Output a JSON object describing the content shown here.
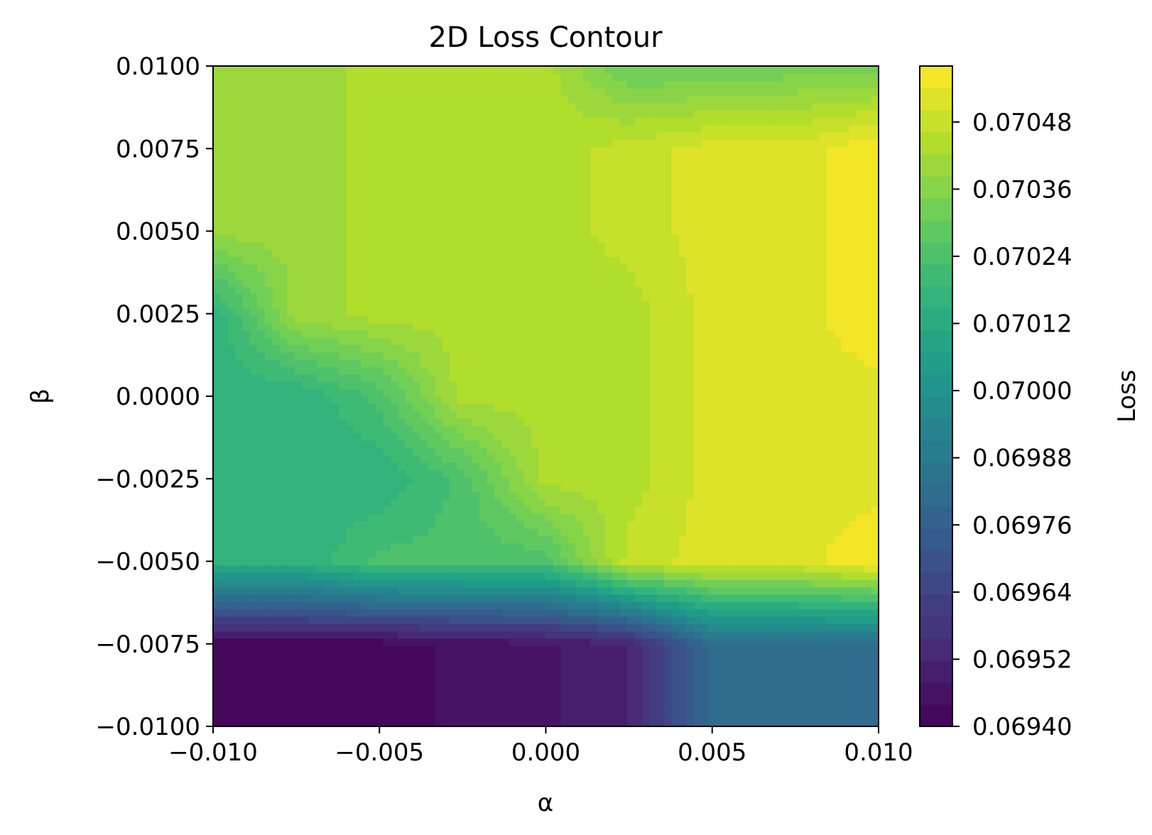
{
  "chart_data": {
    "type": "heatmap",
    "title": "2D Loss Contour",
    "xlabel": "α",
    "ylabel": "β",
    "xlim": [
      -0.01,
      0.01
    ],
    "ylim": [
      -0.01,
      0.01
    ],
    "x_ticks": [
      "−0.010",
      "−0.005",
      "0.000",
      "0.005",
      "0.010"
    ],
    "y_ticks": [
      "−0.0100",
      "−0.0075",
      "−0.0050",
      "−0.0025",
      "0.0000",
      "0.0025",
      "0.0050",
      "0.0075",
      "0.0100"
    ],
    "colorbar": {
      "label": "Loss",
      "range": [
        0.0694,
        0.07058
      ],
      "ticks": [
        0.0694,
        0.06952,
        0.06964,
        0.06976,
        0.06988,
        0.07,
        0.07012,
        0.07024,
        0.07036,
        0.07048
      ],
      "tick_labels": [
        "0.06940",
        "0.06952",
        "0.06964",
        "0.06976",
        "0.06988",
        "0.07000",
        "0.07012",
        "0.07024",
        "0.07036",
        "0.07048"
      ],
      "colormap": "viridis"
    },
    "grid": false,
    "x": [
      -0.01,
      -0.0075,
      -0.005,
      -0.0025,
      0.0,
      0.0025,
      0.005,
      0.0075,
      0.01
    ],
    "y": [
      -0.01,
      -0.0075,
      -0.005,
      -0.0025,
      0.0,
      0.0025,
      0.005,
      0.0075,
      0.01
    ],
    "z": [
      [
        0.06942,
        0.06942,
        0.06942,
        0.06945,
        0.06947,
        0.06952,
        0.06982,
        0.06982,
        0.06982
      ],
      [
        0.06942,
        0.06942,
        0.06942,
        0.06945,
        0.06947,
        0.06952,
        0.06982,
        0.06982,
        0.06982
      ],
      [
        0.07015,
        0.07015,
        0.07024,
        0.07024,
        0.07024,
        0.07048,
        0.07052,
        0.07052,
        0.07058
      ],
      [
        0.07015,
        0.07015,
        0.07015,
        0.07024,
        0.07044,
        0.07044,
        0.07052,
        0.07052,
        0.07052
      ],
      [
        0.07015,
        0.07015,
        0.07024,
        0.07044,
        0.07044,
        0.07044,
        0.07052,
        0.07052,
        0.07052
      ],
      [
        0.07015,
        0.0704,
        0.07044,
        0.07044,
        0.07044,
        0.07044,
        0.07052,
        0.07052,
        0.07058
      ],
      [
        0.0704,
        0.0704,
        0.07044,
        0.07044,
        0.07044,
        0.07048,
        0.07052,
        0.07052,
        0.07058
      ],
      [
        0.0704,
        0.0704,
        0.07044,
        0.07044,
        0.07044,
        0.07048,
        0.07052,
        0.07052,
        0.07058
      ],
      [
        0.0704,
        0.0704,
        0.07044,
        0.07044,
        0.07044,
        0.0703,
        0.0703,
        0.07032,
        0.07032
      ]
    ]
  }
}
